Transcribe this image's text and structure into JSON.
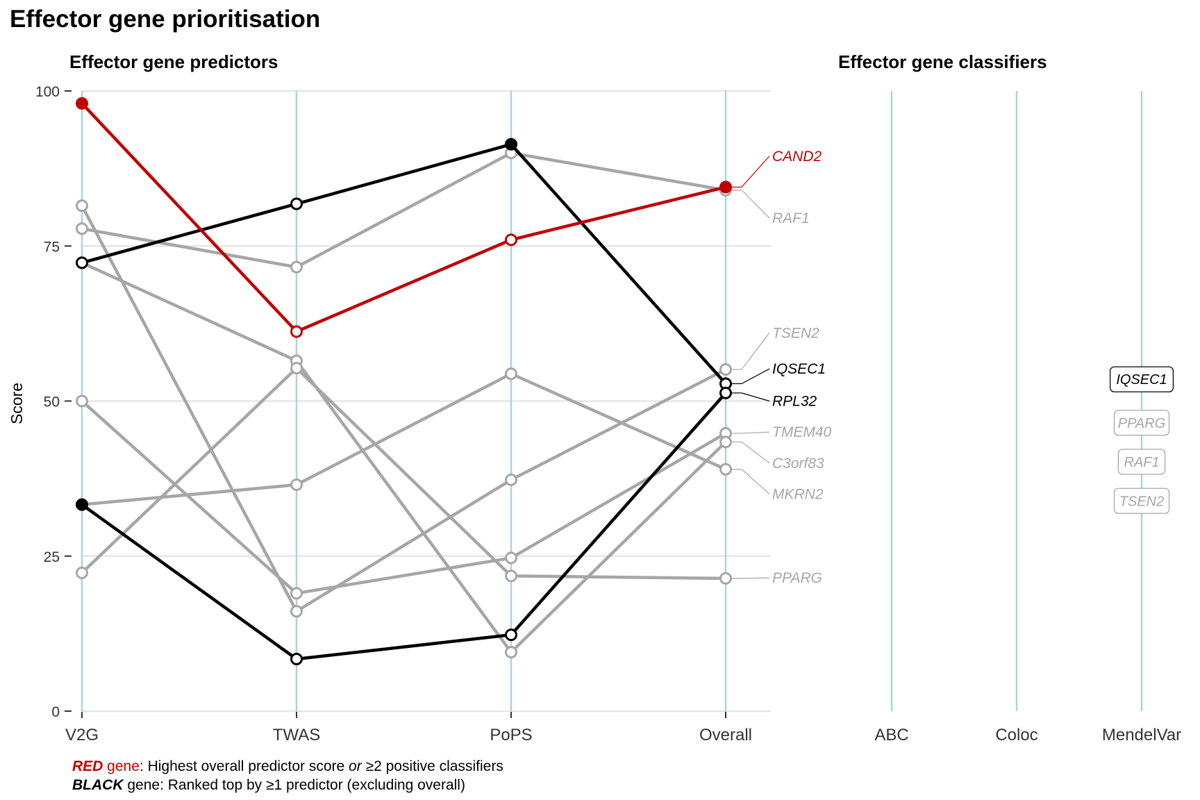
{
  "title": "Effector gene prioritisation",
  "predictors_title": "Effector gene predictors",
  "classifiers_title": "Effector gene classifiers",
  "footnote": {
    "red_word": "RED",
    "red_gene": " gene",
    "red_text_1": ": Highest overall predictor score ",
    "red_or": "or",
    "red_text_2": " ≥2 positive classifiers",
    "black_word": "BLACK",
    "black_text": " gene: Ranked top by ≥1 predictor (excluding overall)"
  },
  "colors": {
    "red": "#c00000",
    "black": "#000000",
    "grey": "#a6a6a6",
    "axis": "#a8d4df",
    "grid": "#e6e6e6"
  },
  "chart_data": {
    "type": "line",
    "ylabel": "Score",
    "ylim": [
      0,
      100
    ],
    "yticks": [
      0,
      25,
      50,
      75,
      100
    ],
    "categories": [
      "V2G",
      "TWAS",
      "PoPS",
      "Overall"
    ],
    "classifier_categories": [
      "ABC",
      "Coloc",
      "MendelVar"
    ],
    "series": [
      {
        "name": "CAND2",
        "group": "red",
        "values": [
          98,
          61.2,
          76,
          84.5
        ]
      },
      {
        "name": "IQSEC1",
        "group": "black",
        "values": [
          72.3,
          81.8,
          91.4,
          52.8
        ]
      },
      {
        "name": "RPL32",
        "group": "black",
        "values": [
          33.3,
          8.4,
          12.3,
          51.3
        ]
      },
      {
        "name": "RAF1",
        "group": "grey",
        "values": [
          77.8,
          71.6,
          90,
          84
        ]
      },
      {
        "name": "TSEN2",
        "group": "grey",
        "values": [
          81.5,
          16.1,
          37.3,
          55.1
        ]
      },
      {
        "name": "TMEM40",
        "group": "grey",
        "values": [
          50,
          19,
          24.7,
          44.8
        ]
      },
      {
        "name": "C3orf83",
        "group": "grey",
        "values": [
          72.3,
          56.5,
          9.5,
          43.4
        ]
      },
      {
        "name": "MKRN2",
        "group": "grey",
        "values": [
          33.3,
          36.5,
          54.4,
          39
        ]
      },
      {
        "name": "PPARG",
        "group": "grey",
        "values": [
          22.3,
          55.3,
          21.8,
          21.4
        ]
      }
    ],
    "gene_labels": [
      {
        "name": "CAND2",
        "group": "red",
        "label_y": 89.5
      },
      {
        "name": "RAF1",
        "group": "grey",
        "label_y": 79.5
      },
      {
        "name": "TSEN2",
        "group": "grey",
        "label_y": 61
      },
      {
        "name": "IQSEC1",
        "group": "black",
        "label_y": 55.2
      },
      {
        "name": "RPL32",
        "group": "black",
        "label_y": 50
      },
      {
        "name": "TMEM40",
        "group": "grey",
        "label_y": 45
      },
      {
        "name": "C3orf83",
        "group": "grey",
        "label_y": 40
      },
      {
        "name": "MKRN2",
        "group": "grey",
        "label_y": 35
      },
      {
        "name": "PPARG",
        "group": "grey",
        "label_y": 21.5
      }
    ],
    "classifier_hits": [
      {
        "classifier": "MendelVar",
        "gene": "IQSEC1",
        "group": "black",
        "y": 53.5
      },
      {
        "classifier": "MendelVar",
        "gene": "PPARG",
        "group": "grey",
        "y": 46.5
      },
      {
        "classifier": "MendelVar",
        "gene": "RAF1",
        "group": "grey",
        "y": 40.2
      },
      {
        "classifier": "MendelVar",
        "gene": "TSEN2",
        "group": "grey",
        "y": 33.9
      }
    ]
  }
}
